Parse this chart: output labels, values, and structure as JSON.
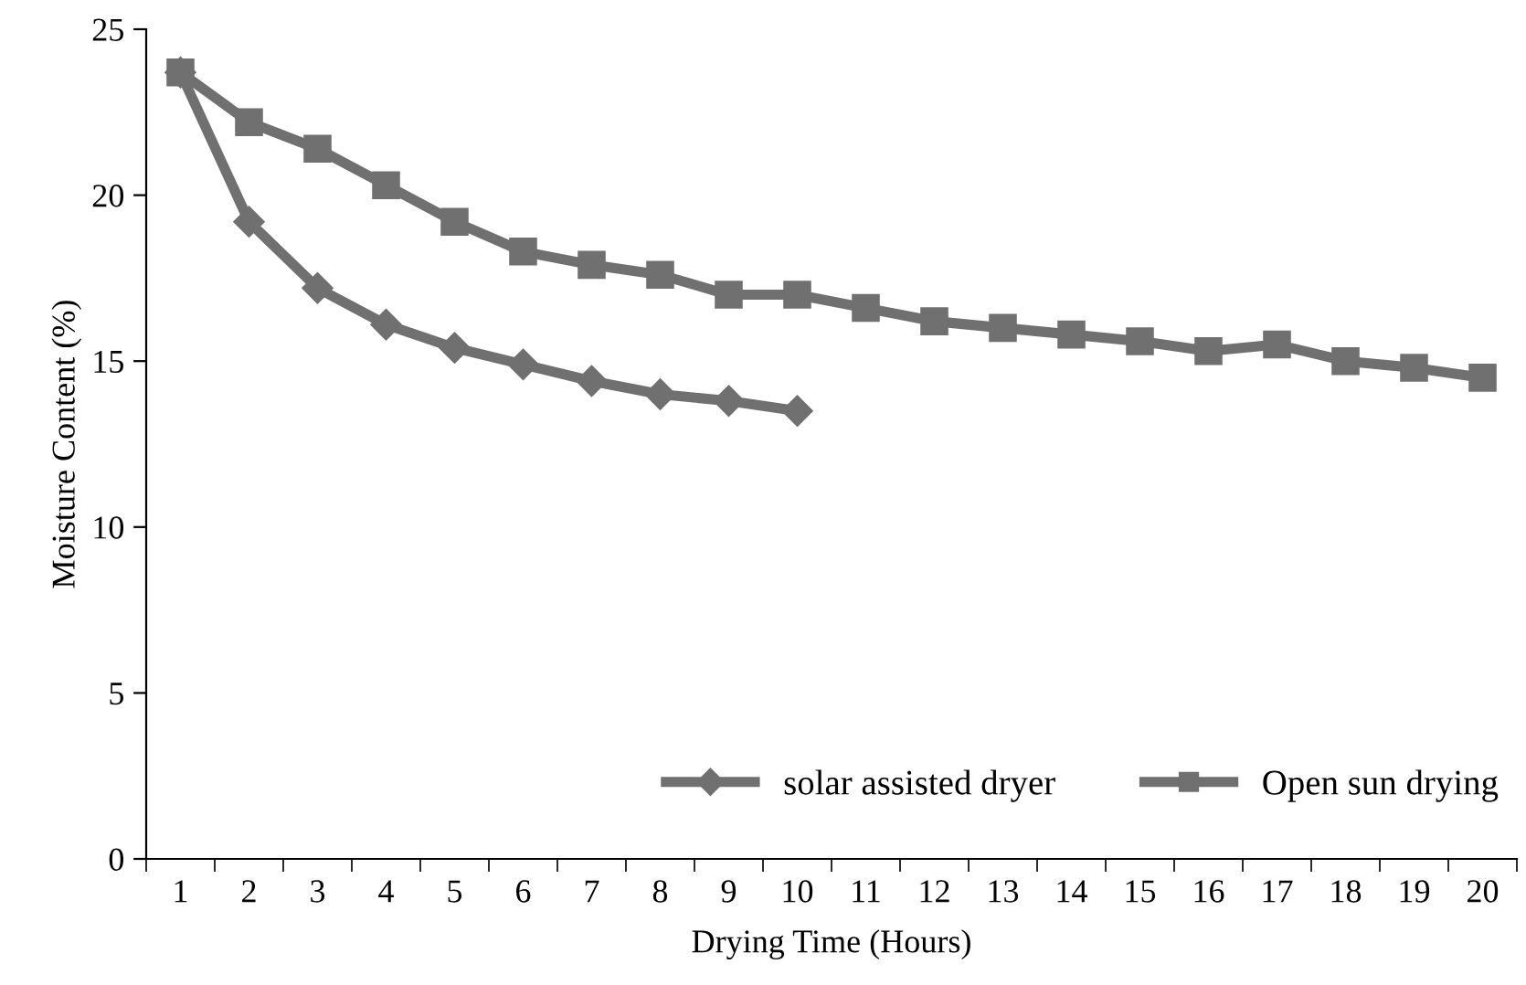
{
  "chart_data": {
    "type": "line",
    "xlabel": "Drying Time (Hours)",
    "ylabel": "Moisture Content (%)",
    "categories": [
      "1",
      "2",
      "3",
      "4",
      "5",
      "6",
      "7",
      "8",
      "9",
      "10",
      "11",
      "12",
      "13",
      "14",
      "15",
      "16",
      "17",
      "18",
      "19",
      "20"
    ],
    "series": [
      {
        "name": "solar assisted dryer",
        "color": "#707070",
        "marker": "diamond",
        "values": [
          23.7,
          19.2,
          17.2,
          16.1,
          15.4,
          14.9,
          14.4,
          14.0,
          13.8,
          13.5,
          null,
          null,
          null,
          null,
          null,
          null,
          null,
          null,
          null,
          null
        ]
      },
      {
        "name": "Open sun drying",
        "color": "#707070",
        "marker": "square",
        "values": [
          23.7,
          22.2,
          21.4,
          20.3,
          19.2,
          18.3,
          17.9,
          17.6,
          17.0,
          17.0,
          16.6,
          16.2,
          16.0,
          15.8,
          15.6,
          15.3,
          15.5,
          15.0,
          14.8,
          14.5
        ]
      }
    ],
    "ylim": [
      0,
      25
    ],
    "yticks": [
      0,
      5,
      10,
      15,
      20,
      25
    ],
    "grid": false,
    "legend": "bottom right",
    "line_style": "solid"
  }
}
